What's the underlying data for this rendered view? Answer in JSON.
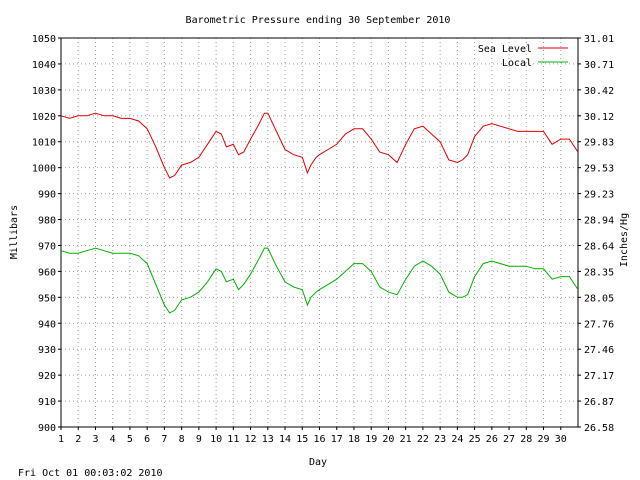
{
  "chart_data": {
    "type": "line",
    "title": "Barometric Pressure ending 30 September 2010",
    "xlabel": "Day",
    "ylabel": "Millibars",
    "y2label": "Inches/Hg",
    "timestamp": "Fri Oct 01 00:03:02 2010",
    "xlim": [
      1,
      31
    ],
    "ylim": [
      900,
      1050
    ],
    "y2lim": [
      26.58,
      31.01
    ],
    "grid": true,
    "legend_position": "top-right",
    "x_ticks": [
      "1",
      "2",
      "3",
      "4",
      "5",
      "6",
      "7",
      "8",
      "9",
      "10",
      "11",
      "12",
      "13",
      "14",
      "15",
      "16",
      "17",
      "18",
      "19",
      "20",
      "21",
      "22",
      "23",
      "24",
      "25",
      "26",
      "27",
      "28",
      "29",
      "30"
    ],
    "y_ticks": [
      "900",
      "910",
      "920",
      "930",
      "940",
      "950",
      "960",
      "970",
      "980",
      "990",
      "1000",
      "1010",
      "1020",
      "1030",
      "1040",
      "1050"
    ],
    "y2_ticks": [
      "26.58",
      "26.87",
      "27.17",
      "27.46",
      "27.76",
      "28.05",
      "28.35",
      "28.64",
      "28.94",
      "29.23",
      "29.53",
      "29.83",
      "30.12",
      "30.42",
      "30.71",
      "31.01"
    ],
    "series": [
      {
        "name": "Sea Level",
        "color": "#e00000",
        "x": [
          1.0,
          1.5,
          2.0,
          2.5,
          3.0,
          3.5,
          4.0,
          4.5,
          5.0,
          5.5,
          6.0,
          6.5,
          7.0,
          7.3,
          7.6,
          8.0,
          8.5,
          9.0,
          9.5,
          10.0,
          10.3,
          10.6,
          11.0,
          11.3,
          11.6,
          12.0,
          12.5,
          12.8,
          13.0,
          13.5,
          14.0,
          14.5,
          15.0,
          15.3,
          15.5,
          15.8,
          16.0,
          16.5,
          17.0,
          17.5,
          18.0,
          18.5,
          19.0,
          19.5,
          20.0,
          20.5,
          21.0,
          21.5,
          22.0,
          22.5,
          23.0,
          23.5,
          24.0,
          24.3,
          24.6,
          25.0,
          25.5,
          26.0,
          26.5,
          27.0,
          27.5,
          28.0,
          28.5,
          29.0,
          29.5,
          30.0,
          30.5,
          31.0
        ],
        "values": [
          1020,
          1019,
          1020,
          1020,
          1021,
          1020,
          1020,
          1019,
          1019,
          1018,
          1015,
          1008,
          1000,
          996,
          997,
          1001,
          1002,
          1004,
          1009,
          1014,
          1013,
          1008,
          1009,
          1005,
          1006,
          1011,
          1017,
          1021,
          1021,
          1014,
          1007,
          1005,
          1004,
          998,
          1001,
          1004,
          1005,
          1007,
          1009,
          1013,
          1015,
          1015,
          1011,
          1006,
          1005,
          1002,
          1009,
          1015,
          1016,
          1013,
          1010,
          1003,
          1002,
          1003,
          1005,
          1012,
          1016,
          1017,
          1016,
          1015,
          1014,
          1014,
          1014,
          1014,
          1009,
          1011,
          1011,
          1006
        ]
      },
      {
        "name": "Local",
        "color": "#00b000",
        "x": [
          1.0,
          1.5,
          2.0,
          2.5,
          3.0,
          3.5,
          4.0,
          4.5,
          5.0,
          5.5,
          6.0,
          6.5,
          7.0,
          7.3,
          7.6,
          8.0,
          8.5,
          9.0,
          9.5,
          10.0,
          10.3,
          10.6,
          11.0,
          11.3,
          11.6,
          12.0,
          12.5,
          12.8,
          13.0,
          13.5,
          14.0,
          14.5,
          15.0,
          15.3,
          15.5,
          15.8,
          16.0,
          16.5,
          17.0,
          17.5,
          18.0,
          18.5,
          19.0,
          19.5,
          20.0,
          20.5,
          21.0,
          21.5,
          22.0,
          22.5,
          23.0,
          23.5,
          24.0,
          24.3,
          24.6,
          25.0,
          25.5,
          26.0,
          26.5,
          27.0,
          27.5,
          28.0,
          28.5,
          29.0,
          29.5,
          30.0,
          30.5,
          31.0
        ],
        "values": [
          968,
          967,
          967,
          968,
          969,
          968,
          967,
          967,
          967,
          966,
          963,
          955,
          947,
          944,
          945,
          949,
          950,
          952,
          956,
          961,
          960,
          956,
          957,
          953,
          955,
          959,
          965,
          969,
          969,
          962,
          956,
          954,
          953,
          947,
          950,
          952,
          953,
          955,
          957,
          960,
          963,
          963,
          960,
          954,
          952,
          951,
          957,
          962,
          964,
          962,
          959,
          952,
          950,
          950,
          951,
          958,
          963,
          964,
          963,
          962,
          962,
          962,
          961,
          961,
          957,
          958,
          958,
          953
        ]
      }
    ]
  }
}
